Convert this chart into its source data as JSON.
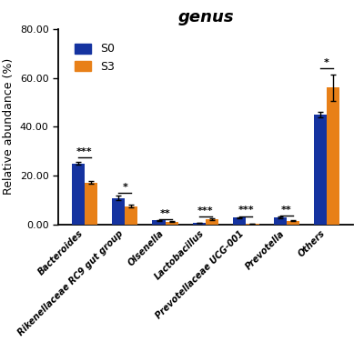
{
  "title": "genus",
  "ylabel": "Relative abundance (%)",
  "categories": [
    "Bacteroides",
    "Rikenellaceae RC9 gut group",
    "Olsenella",
    "Lactobacillus",
    "Prevotellaceae UCG-001",
    "Prevotella",
    "Others"
  ],
  "s0_values": [
    25.0,
    10.8,
    1.7,
    0.7,
    2.8,
    2.8,
    45.0
  ],
  "s3_values": [
    17.2,
    7.5,
    1.1,
    2.3,
    0.2,
    1.5,
    56.0
  ],
  "s0_errors": [
    0.7,
    0.9,
    0.18,
    0.12,
    0.22,
    0.28,
    1.2
  ],
  "s3_errors": [
    0.5,
    0.5,
    0.13,
    0.4,
    0.04,
    0.22,
    5.5
  ],
  "significance": [
    "***",
    "*",
    "**",
    "***",
    "***",
    "**",
    "*"
  ],
  "color_s0": "#1533a0",
  "color_s3": "#e88018",
  "ylim": [
    0,
    80.0
  ],
  "yticks": [
    0.0,
    20.0,
    40.0,
    60.0,
    80.0
  ],
  "bar_width": 0.32,
  "legend_labels": [
    "S0",
    "S3"
  ]
}
